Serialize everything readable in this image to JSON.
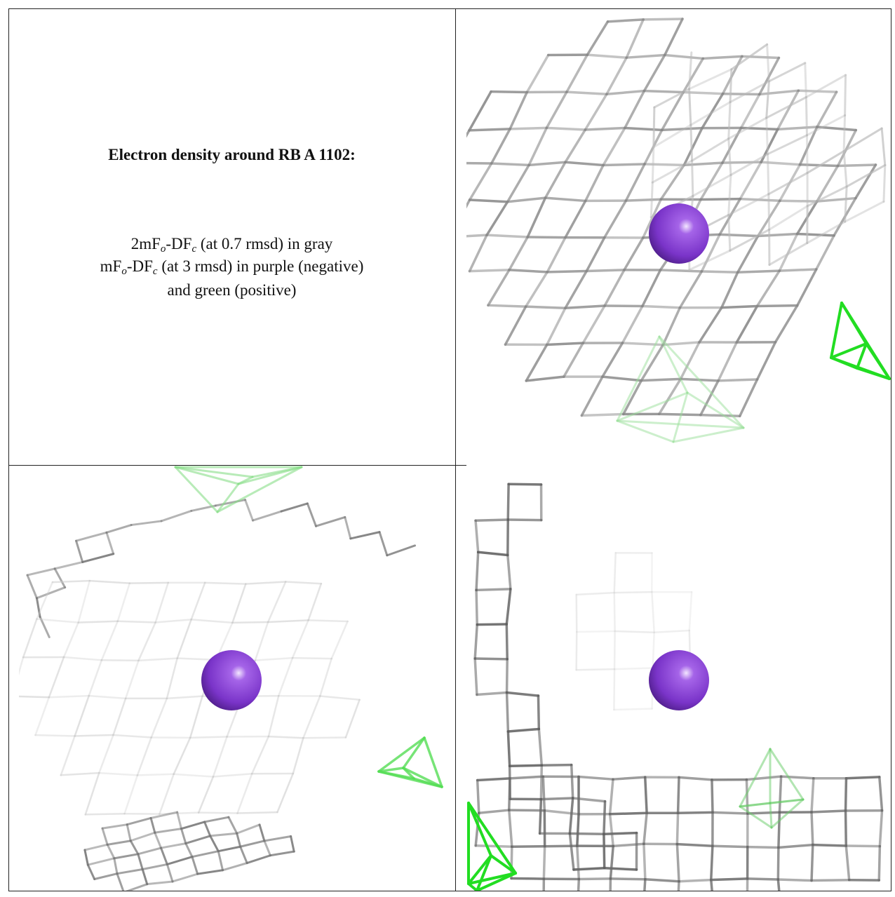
{
  "caption": {
    "title": "Electron density around RB A 1102:",
    "lines": [
      [
        "2mF",
        "o",
        "-DF",
        "c",
        " (at 0.7 rmsd) in gray"
      ],
      [
        "mF",
        "o",
        "-DF",
        "c",
        " (at 3 rmsd) in purple (negative)"
      ],
      [
        "and green (positive)"
      ]
    ]
  }
}
